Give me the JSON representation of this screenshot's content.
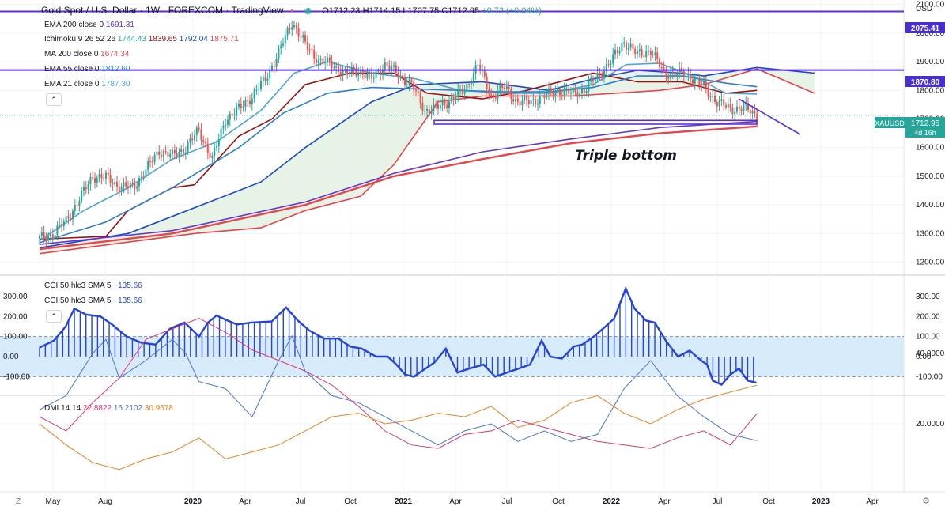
{
  "header": {
    "title": "Gold Spot / U.S. Dollar · 1W · FOREXCOM · TradingView",
    "open": "O1712.23",
    "high": "H1714.15",
    "low": "L1707.75",
    "close": "C1712.95",
    "change": "+0.72 (+0.04%)"
  },
  "legend": {
    "ema200": {
      "name": "EMA 200 close 0",
      "value": "1691.31"
    },
    "ichimoku": {
      "name": "Ichimoku 9 26 52 26",
      "v1": "1744.43",
      "v2": "1839.65",
      "v3": "1792.04",
      "v4": "1875.71"
    },
    "ma200": {
      "name": "MA 200 close 0",
      "value": "1674.34"
    },
    "ema55": {
      "name": "EMA 55 close 0",
      "value": "1812.60"
    },
    "ema21": {
      "name": "EMA 21 close 0",
      "value": "1787.30"
    },
    "cci1": {
      "name": "CCI 50 hlc3 SMA 5",
      "value": "−135.66"
    },
    "cci2": {
      "name": "CCI 50 hlc3 SMA 5",
      "value": "−135.66"
    },
    "dmi": {
      "name": "DMI 14 14",
      "v1": "22.8822",
      "v2": "15.2102",
      "v3": "30.9578"
    }
  },
  "currency": "USD",
  "price_labels": {
    "h1": "2075.41",
    "h2": "1870.80",
    "symbol": "XAUUSD",
    "last": "1712.95",
    "countdown": "4d 16h"
  },
  "annotation": "Triple bottom",
  "buttons": {
    "collapse": "⌃",
    "z": "Z",
    "settings": "⚙"
  },
  "colors": {
    "up": "#26a69a",
    "down": "#ef5350",
    "hline": "#5b2ee0",
    "ichimoku_base": "#1848cc",
    "ichimoku_conv": "#9c1010",
    "ema21": "#4aa6d8",
    "ema55": "#2b7fd0",
    "ma200": "#e8454a",
    "ema200": "#6237c8",
    "cci": "#2443d8",
    "cci_band": "#d8ebfb",
    "dmi_plus": "#4a72d8",
    "dmi_minus": "#e0356c",
    "adx": "#ef7f1a"
  },
  "chart_data": [
    {
      "type": "candlestick",
      "title": "Gold Spot / U.S. Dollar",
      "xaxis_labels": [
        "May",
        "Aug",
        "2020",
        "Apr",
        "Jul",
        "Oct",
        "2021",
        "Apr",
        "Jul",
        "Oct",
        "2022",
        "Apr",
        "Jul",
        "Oct",
        "2023",
        "Apr"
      ],
      "y_ticks": [
        1200,
        1300,
        1400,
        1500,
        1600,
        1700,
        1800,
        1900,
        2000,
        2100
      ],
      "ylim": [
        1160,
        2110
      ],
      "horizontal_lines": [
        2075.41,
        1870.8
      ],
      "support_zone": [
        1682,
        1695
      ],
      "close_path": [
        [
          0,
          1282
        ],
        [
          6,
          1298
        ],
        [
          12,
          1345
        ],
        [
          18,
          1420
        ],
        [
          24,
          1500
        ],
        [
          30,
          1495
        ],
        [
          36,
          1465
        ],
        [
          42,
          1460
        ],
        [
          48,
          1520
        ],
        [
          54,
          1590
        ],
        [
          60,
          1570
        ],
        [
          66,
          1600
        ],
        [
          72,
          1660
        ],
        [
          78,
          1560
        ],
        [
          84,
          1700
        ],
        [
          90,
          1735
        ],
        [
          96,
          1780
        ],
        [
          102,
          1840
        ],
        [
          108,
          1930
        ],
        [
          114,
          2040
        ],
        [
          120,
          1960
        ],
        [
          126,
          1905
        ],
        [
          132,
          1890
        ],
        [
          138,
          1860
        ],
        [
          144,
          1870
        ],
        [
          150,
          1840
        ],
        [
          156,
          1890
        ],
        [
          162,
          1855
        ],
        [
          168,
          1820
        ],
        [
          174,
          1730
        ],
        [
          180,
          1740
        ],
        [
          186,
          1770
        ],
        [
          192,
          1800
        ],
        [
          198,
          1890
        ],
        [
          204,
          1780
        ],
        [
          210,
          1810
        ],
        [
          216,
          1760
        ],
        [
          222,
          1760
        ],
        [
          228,
          1780
        ],
        [
          234,
          1800
        ],
        [
          240,
          1790
        ],
        [
          246,
          1800
        ],
        [
          252,
          1850
        ],
        [
          258,
          1900
        ],
        [
          264,
          1970
        ],
        [
          270,
          1925
        ],
        [
          276,
          1940
        ],
        [
          282,
          1860
        ],
        [
          288,
          1860
        ],
        [
          294,
          1850
        ],
        [
          300,
          1810
        ],
        [
          306,
          1760
        ],
        [
          312,
          1735
        ],
        [
          318,
          1740
        ],
        [
          324,
          1712.95
        ]
      ],
      "series": [
        {
          "name": "EMA 21 close 0",
          "values": [
            [
              0,
              1275
            ],
            [
              20,
              1380
            ],
            [
              40,
              1460
            ],
            [
              60,
              1560
            ],
            [
              80,
              1620
            ],
            [
              100,
              1730
            ],
            [
              115,
              1860
            ],
            [
              130,
              1900
            ],
            [
              150,
              1860
            ],
            [
              170,
              1840
            ],
            [
              190,
              1800
            ],
            [
              210,
              1790
            ],
            [
              230,
              1790
            ],
            [
              250,
              1820
            ],
            [
              265,
              1890
            ],
            [
              280,
              1895
            ],
            [
              295,
              1850
            ],
            [
              310,
              1790
            ],
            [
              324,
              1787.3
            ]
          ]
        },
        {
          "name": "EMA 55 close 0",
          "values": [
            [
              0,
              1268
            ],
            [
              30,
              1340
            ],
            [
              60,
              1460
            ],
            [
              90,
              1600
            ],
            [
              110,
              1720
            ],
            [
              130,
              1790
            ],
            [
              150,
              1810
            ],
            [
              170,
              1805
            ],
            [
              190,
              1800
            ],
            [
              210,
              1795
            ],
            [
              230,
              1795
            ],
            [
              250,
              1810
            ],
            [
              270,
              1850
            ],
            [
              290,
              1850
            ],
            [
              310,
              1825
            ],
            [
              324,
              1812.6
            ]
          ]
        },
        {
          "name": "MA 200 close 0",
          "values": [
            [
              0,
              1245
            ],
            [
              60,
              1300
            ],
            [
              120,
              1400
            ],
            [
              160,
              1500
            ],
            [
              200,
              1560
            ],
            [
              240,
              1615
            ],
            [
              280,
              1650
            ],
            [
              324,
              1674.34
            ]
          ]
        },
        {
          "name": "EMA 200 close 0",
          "values": [
            [
              0,
              1262
            ],
            [
              60,
              1310
            ],
            [
              120,
              1410
            ],
            [
              160,
              1510
            ],
            [
              200,
              1585
            ],
            [
              240,
              1630
            ],
            [
              280,
              1670
            ],
            [
              324,
              1691.31
            ]
          ]
        }
      ]
    },
    {
      "type": "bar",
      "title": "CCI 50 hlc3 SMA 5",
      "y_ticks": [
        -100,
        0,
        100,
        200,
        300
      ],
      "ylim": [
        -160,
        340
      ],
      "band": [
        -100,
        100
      ],
      "path": [
        [
          0,
          45
        ],
        [
          10,
          80
        ],
        [
          18,
          150
        ],
        [
          24,
          240
        ],
        [
          32,
          210
        ],
        [
          42,
          200
        ],
        [
          50,
          160
        ],
        [
          60,
          100
        ],
        [
          70,
          70
        ],
        [
          80,
          60
        ],
        [
          90,
          140
        ],
        [
          100,
          170
        ],
        [
          110,
          100
        ],
        [
          116,
          170
        ],
        [
          122,
          205
        ],
        [
          128,
          185
        ],
        [
          136,
          160
        ],
        [
          146,
          170
        ],
        [
          160,
          175
        ],
        [
          170,
          245
        ],
        [
          178,
          180
        ],
        [
          186,
          130
        ],
        [
          196,
          90
        ],
        [
          206,
          90
        ],
        [
          214,
          50
        ],
        [
          222,
          40
        ],
        [
          232,
          0
        ],
        [
          240,
          0
        ],
        [
          246,
          -40
        ],
        [
          252,
          -90
        ],
        [
          258,
          -100
        ],
        [
          264,
          -70
        ],
        [
          272,
          -30
        ],
        [
          280,
          40
        ],
        [
          288,
          -80
        ],
        [
          296,
          -60
        ],
        [
          306,
          -40
        ],
        [
          314,
          -100
        ],
        [
          322,
          -80
        ],
        [
          330,
          -60
        ],
        [
          338,
          -40
        ],
        [
          346,
          80
        ],
        [
          352,
          0
        ],
        [
          360,
          -10
        ],
        [
          368,
          50
        ],
        [
          374,
          60
        ],
        [
          382,
          100
        ],
        [
          390,
          150
        ],
        [
          396,
          190
        ],
        [
          404,
          340
        ],
        [
          410,
          240
        ],
        [
          418,
          180
        ],
        [
          424,
          170
        ],
        [
          432,
          75
        ],
        [
          440,
          0
        ],
        [
          448,
          30
        ],
        [
          456,
          -20
        ],
        [
          460,
          -40
        ],
        [
          464,
          -120
        ],
        [
          470,
          -140
        ],
        [
          476,
          -90
        ],
        [
          482,
          -60
        ],
        [
          488,
          -120
        ],
        [
          494,
          -130
        ]
      ]
    },
    {
      "type": "line",
      "title": "DMI 14 14",
      "y_ticks": [
        20,
        40
      ],
      "ylim": [
        0,
        48
      ],
      "series": [
        {
          "name": "22.8822",
          "values": [
            [
              0,
              22
            ],
            [
              12,
              18
            ],
            [
              24,
              26
            ],
            [
              36,
              33
            ],
            [
              48,
              44
            ],
            [
              60,
              47
            ],
            [
              72,
              50
            ],
            [
              84,
              46
            ],
            [
              96,
              41
            ],
            [
              108,
              38
            ],
            [
              120,
              35
            ],
            [
              132,
              31
            ],
            [
              144,
              25
            ],
            [
              156,
              18
            ],
            [
              168,
              14
            ],
            [
              180,
              13
            ],
            [
              192,
              17
            ],
            [
              204,
              18
            ],
            [
              216,
              21
            ],
            [
              228,
              19
            ],
            [
              240,
              17
            ],
            [
              252,
              15
            ],
            [
              264,
              14
            ],
            [
              276,
              13
            ],
            [
              288,
              16
            ],
            [
              300,
              18
            ],
            [
              312,
              14
            ],
            [
              324,
              22.88
            ]
          ]
        },
        {
          "name": "15.2102",
          "values": [
            [
              0,
              24
            ],
            [
              12,
              28
            ],
            [
              24,
              40
            ],
            [
              30,
              44
            ],
            [
              36,
              33
            ],
            [
              48,
              38
            ],
            [
              60,
              44
            ],
            [
              66,
              40
            ],
            [
              72,
              32
            ],
            [
              84,
              30
            ],
            [
              96,
              22
            ],
            [
              108,
              38
            ],
            [
              114,
              45
            ],
            [
              120,
              35
            ],
            [
              132,
              28
            ],
            [
              144,
              26
            ],
            [
              156,
              22
            ],
            [
              168,
              18
            ],
            [
              180,
              14
            ],
            [
              192,
              18
            ],
            [
              204,
              20
            ],
            [
              216,
              15
            ],
            [
              228,
              18
            ],
            [
              240,
              15
            ],
            [
              252,
              17
            ],
            [
              264,
              30
            ],
            [
              276,
              38
            ],
            [
              288,
              28
            ],
            [
              300,
              22
            ],
            [
              312,
              17
            ],
            [
              324,
              15.21
            ]
          ]
        },
        {
          "name": "30.9578",
          "values": [
            [
              0,
              20
            ],
            [
              12,
              14
            ],
            [
              24,
              9
            ],
            [
              36,
              7
            ],
            [
              48,
              10
            ],
            [
              60,
              12
            ],
            [
              72,
              16
            ],
            [
              84,
              10
            ],
            [
              96,
              12
            ],
            [
              108,
              14
            ],
            [
              120,
              18
            ],
            [
              132,
              22
            ],
            [
              144,
              23
            ],
            [
              156,
              20
            ],
            [
              168,
              21
            ],
            [
              180,
              23
            ],
            [
              192,
              22
            ],
            [
              204,
              25
            ],
            [
              216,
              19
            ],
            [
              228,
              21
            ],
            [
              240,
              26
            ],
            [
              252,
              28
            ],
            [
              264,
              23
            ],
            [
              276,
              20
            ],
            [
              288,
              24
            ],
            [
              300,
              27
            ],
            [
              312,
              29
            ],
            [
              324,
              30.96
            ]
          ]
        }
      ]
    }
  ]
}
